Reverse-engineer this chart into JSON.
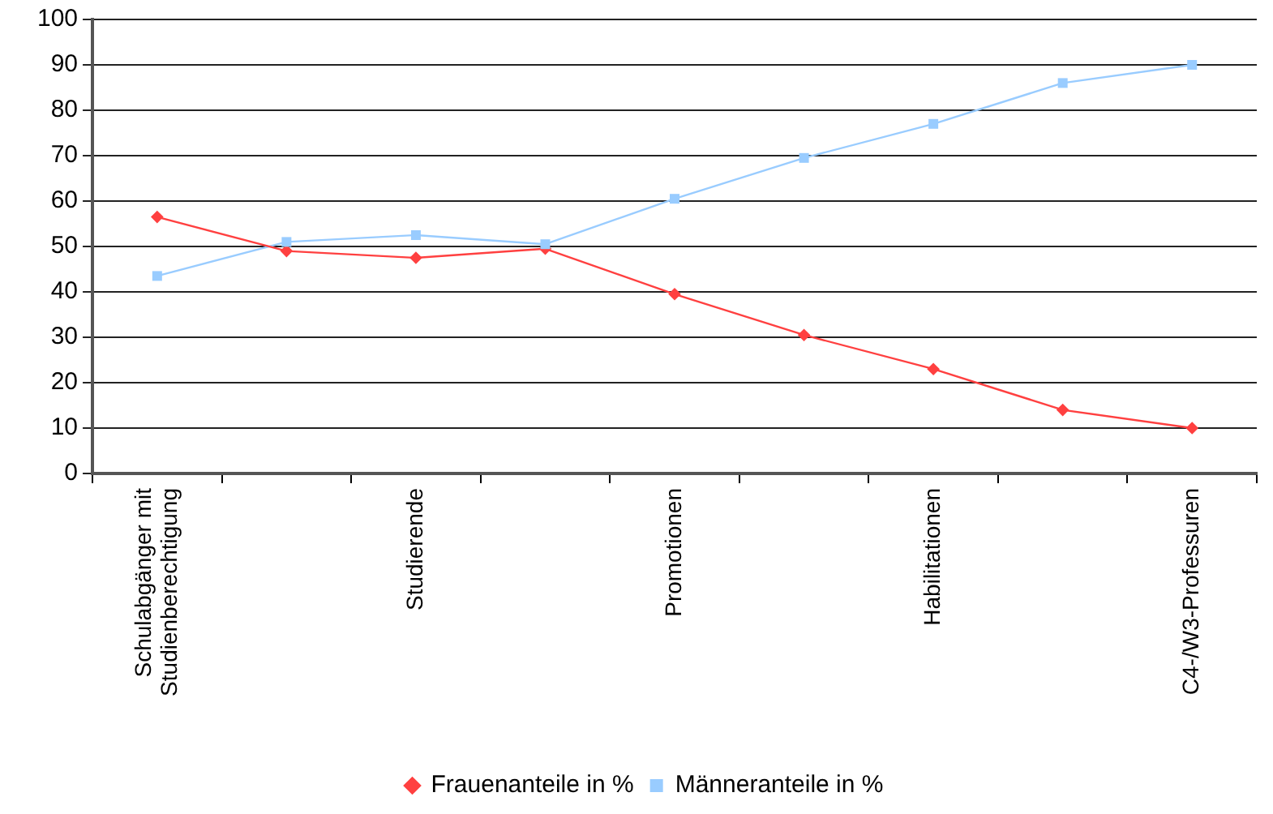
{
  "chart_data": {
    "type": "line",
    "categories": [
      "Schulabgänger mit Studienberechtigung",
      null,
      "Studierende",
      null,
      "Promotionen",
      null,
      "Habilitationen",
      null,
      "C4-/W3-Professuren"
    ],
    "series": [
      {
        "name": "Frauenanteile in %",
        "color": "#ff4040",
        "marker": "diamond",
        "values": [
          56.5,
          49,
          47.5,
          49.5,
          39.5,
          30.5,
          23,
          14,
          10
        ]
      },
      {
        "name": "Männeranteile in %",
        "color": "#99ccff",
        "marker": "square",
        "values": [
          43.5,
          51,
          52.5,
          50.5,
          60.5,
          69.5,
          77,
          86,
          90
        ]
      }
    ],
    "ylim": [
      0,
      100
    ],
    "yticks": [
      0,
      10,
      20,
      30,
      40,
      50,
      60,
      70,
      80,
      90,
      100
    ],
    "grid": "y",
    "legend": "bottom",
    "line_style": "solid"
  }
}
